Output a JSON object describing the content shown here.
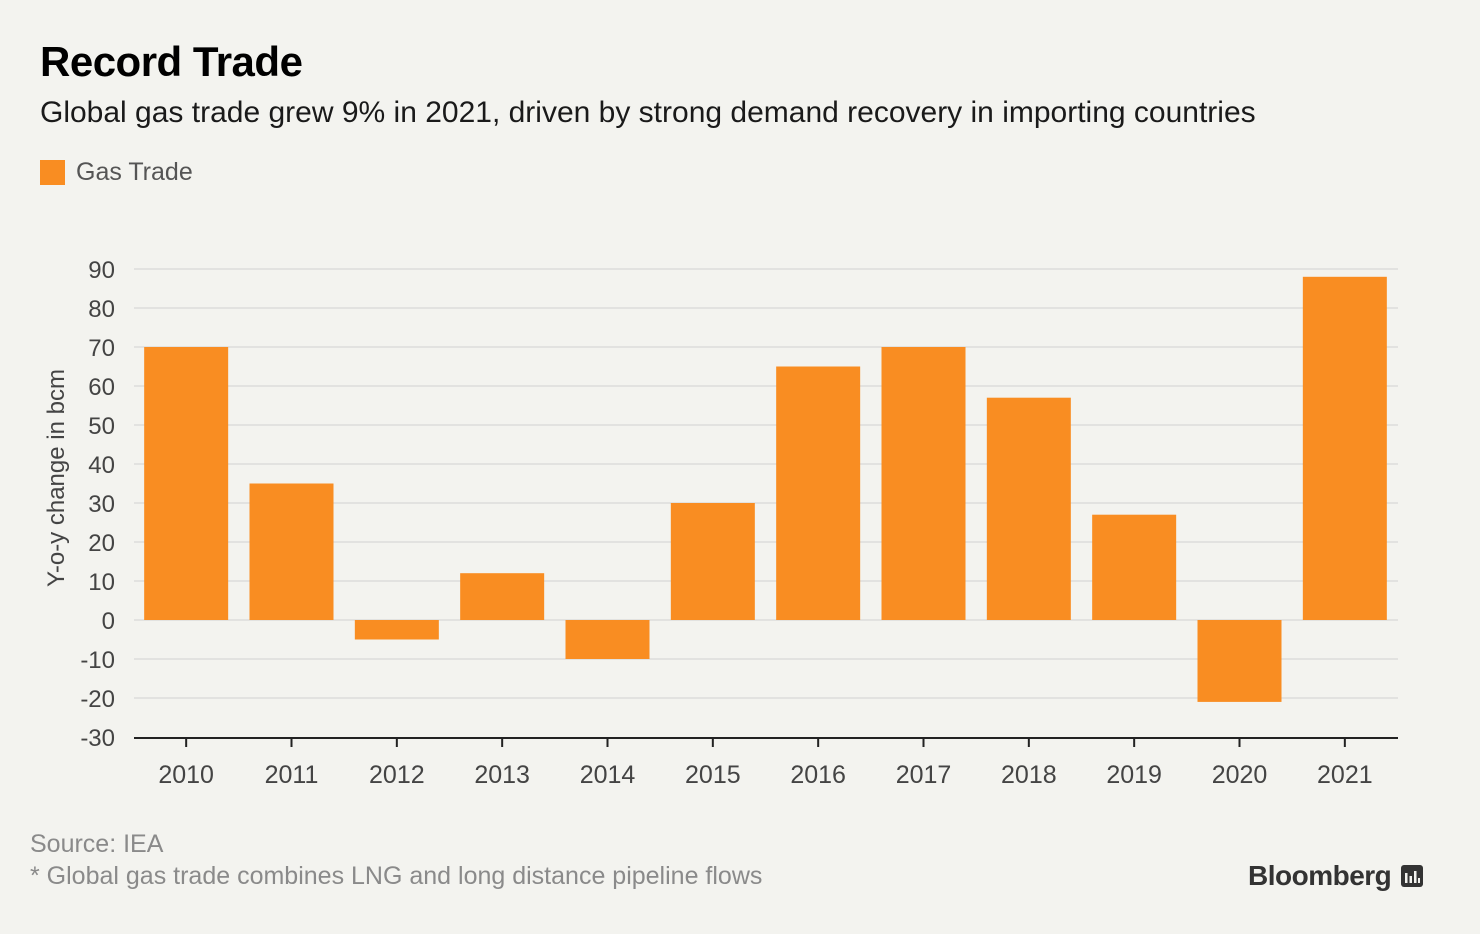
{
  "header": {
    "title": "Record Trade",
    "subtitle": "Global gas trade grew 9% in 2021, driven by strong demand recovery in importing countries"
  },
  "legend": {
    "label": "Gas Trade"
  },
  "footer": {
    "source": "Source: IEA",
    "note": "* Global gas trade combines LNG and long distance pipeline flows",
    "brand": "Bloomberg",
    "brand_icon": "bloomberg-bars-icon"
  },
  "colors": {
    "bar": "#f98d22",
    "background": "#f3f3ef",
    "grid": "#dcdcdc",
    "axis": "#222222",
    "tick_text": "#444444"
  },
  "chart_data": {
    "type": "bar",
    "title": "Record Trade",
    "subtitle": "Global gas trade grew 9% in 2021, driven by strong demand recovery in importing countries",
    "xlabel": "",
    "ylabel": "Y-o-y change in bcm",
    "categories": [
      "2010",
      "2011",
      "2012",
      "2013",
      "2014",
      "2015",
      "2016",
      "2017",
      "2018",
      "2019",
      "2020",
      "2021"
    ],
    "series": [
      {
        "name": "Gas Trade",
        "values": [
          70,
          35,
          -5,
          12,
          -10,
          30,
          65,
          70,
          57,
          27,
          -21,
          88
        ]
      }
    ],
    "ylim": [
      -30,
      90
    ],
    "yticks": [
      90,
      80,
      70,
      60,
      50,
      40,
      30,
      20,
      10,
      0,
      -10,
      -20,
      -30
    ],
    "grid": true,
    "legend_position": "top-left"
  }
}
